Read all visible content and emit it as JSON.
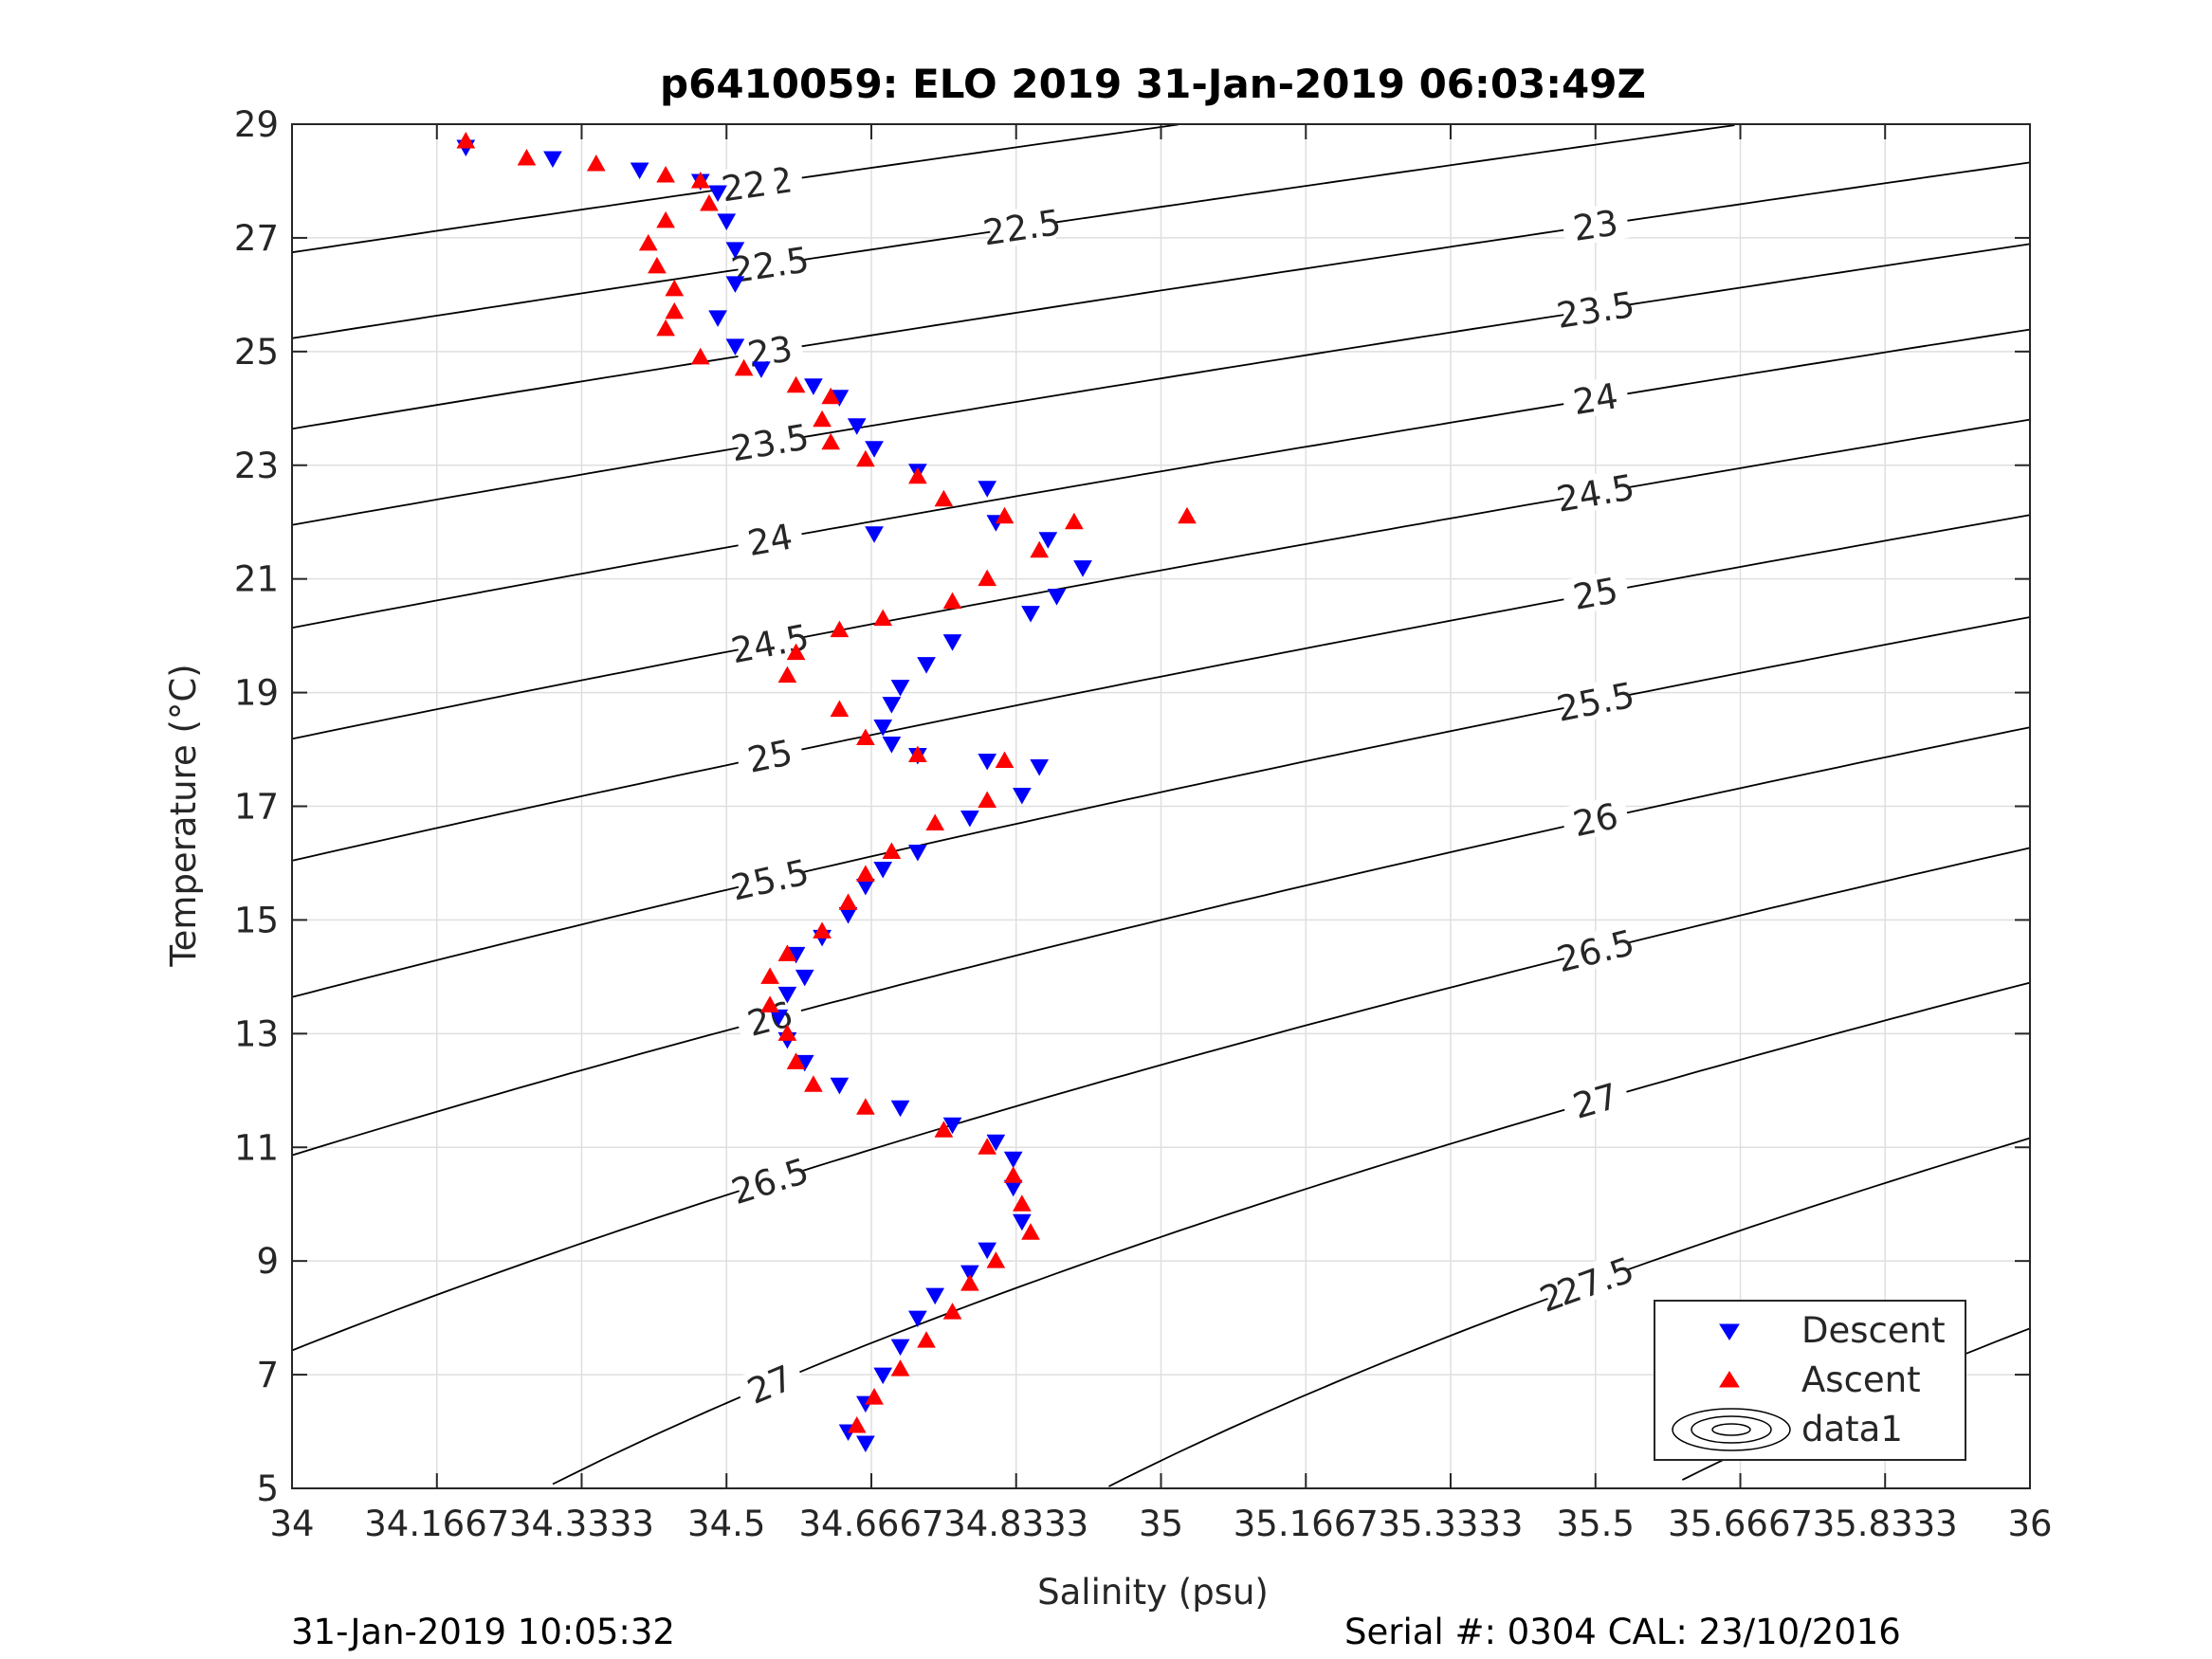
{
  "chart_data": {
    "type": "scatter",
    "title": "p6410059: ELO 2019 31-Jan-2019 06:03:49Z",
    "xlabel": "Salinity (psu)",
    "ylabel": "Temperature (°C)",
    "xlim": [
      34,
      36
    ],
    "ylim": [
      5,
      29
    ],
    "x_ticks": [
      "34",
      "34.1667",
      "34.3333",
      "34.5",
      "34.6667",
      "34.8333",
      "35",
      "35.1667",
      "35.3333",
      "35.5",
      "35.6667",
      "35.8333",
      "36"
    ],
    "y_ticks": [
      "5",
      "7",
      "9",
      "11",
      "13",
      "15",
      "17",
      "19",
      "21",
      "23",
      "25",
      "27",
      "29"
    ],
    "grid": true,
    "legend_position": "bottom-right",
    "legend": [
      "Descent",
      "Ascent",
      "data1"
    ],
    "contour_levels": [
      "22",
      "22.5",
      "23",
      "23.5",
      "24",
      "24.5",
      "25",
      "25.5",
      "26",
      "26.5",
      "27",
      "27.5",
      "28"
    ],
    "series": [
      {
        "name": "Descent",
        "marker": "triangle-down",
        "color": "#0000ff",
        "points": [
          [
            34.2,
            28.6
          ],
          [
            34.3,
            28.4
          ],
          [
            34.4,
            28.2
          ],
          [
            34.47,
            28.0
          ],
          [
            34.49,
            27.8
          ],
          [
            34.5,
            27.3
          ],
          [
            34.51,
            26.8
          ],
          [
            34.51,
            26.2
          ],
          [
            34.49,
            25.6
          ],
          [
            34.51,
            25.1
          ],
          [
            34.54,
            24.7
          ],
          [
            34.6,
            24.4
          ],
          [
            34.63,
            24.2
          ],
          [
            34.65,
            23.7
          ],
          [
            34.67,
            23.3
          ],
          [
            34.72,
            22.9
          ],
          [
            34.8,
            22.6
          ],
          [
            34.67,
            21.8
          ],
          [
            34.81,
            22.0
          ],
          [
            34.87,
            21.7
          ],
          [
            34.91,
            21.2
          ],
          [
            34.88,
            20.7
          ],
          [
            34.85,
            20.4
          ],
          [
            34.76,
            19.9
          ],
          [
            34.73,
            19.5
          ],
          [
            34.7,
            19.1
          ],
          [
            34.69,
            18.8
          ],
          [
            34.68,
            18.4
          ],
          [
            34.69,
            18.1
          ],
          [
            34.72,
            17.9
          ],
          [
            34.8,
            17.8
          ],
          [
            34.86,
            17.7
          ],
          [
            34.84,
            17.2
          ],
          [
            34.78,
            16.8
          ],
          [
            34.72,
            16.2
          ],
          [
            34.68,
            15.9
          ],
          [
            34.66,
            15.6
          ],
          [
            34.64,
            15.1
          ],
          [
            34.61,
            14.7
          ],
          [
            34.58,
            14.4
          ],
          [
            34.59,
            14.0
          ],
          [
            34.57,
            13.7
          ],
          [
            34.56,
            13.3
          ],
          [
            34.57,
            12.9
          ],
          [
            34.59,
            12.5
          ],
          [
            34.63,
            12.1
          ],
          [
            34.7,
            11.7
          ],
          [
            34.76,
            11.4
          ],
          [
            34.81,
            11.1
          ],
          [
            34.83,
            10.8
          ],
          [
            34.83,
            10.3
          ],
          [
            34.84,
            9.7
          ],
          [
            34.8,
            9.2
          ],
          [
            34.78,
            8.8
          ],
          [
            34.74,
            8.4
          ],
          [
            34.72,
            8.0
          ],
          [
            34.7,
            7.5
          ],
          [
            34.68,
            7.0
          ],
          [
            34.66,
            6.5
          ],
          [
            34.64,
            6.0
          ],
          [
            34.66,
            5.8
          ]
        ]
      },
      {
        "name": "Ascent",
        "marker": "triangle-up",
        "color": "#ff0000",
        "points": [
          [
            34.2,
            28.7
          ],
          [
            34.27,
            28.4
          ],
          [
            34.35,
            28.3
          ],
          [
            34.43,
            28.1
          ],
          [
            34.47,
            28.0
          ],
          [
            34.48,
            27.6
          ],
          [
            34.43,
            27.3
          ],
          [
            34.41,
            26.9
          ],
          [
            34.42,
            26.5
          ],
          [
            34.44,
            26.1
          ],
          [
            34.44,
            25.7
          ],
          [
            34.43,
            25.4
          ],
          [
            34.47,
            24.9
          ],
          [
            34.52,
            24.7
          ],
          [
            34.58,
            24.4
          ],
          [
            34.62,
            24.2
          ],
          [
            34.61,
            23.8
          ],
          [
            34.62,
            23.4
          ],
          [
            34.66,
            23.1
          ],
          [
            34.72,
            22.8
          ],
          [
            34.75,
            22.4
          ],
          [
            34.82,
            22.1
          ],
          [
            34.9,
            22.0
          ],
          [
            35.03,
            22.1
          ],
          [
            34.86,
            21.5
          ],
          [
            34.8,
            21.0
          ],
          [
            34.76,
            20.6
          ],
          [
            34.68,
            20.3
          ],
          [
            34.63,
            20.1
          ],
          [
            34.58,
            19.7
          ],
          [
            34.57,
            19.3
          ],
          [
            34.63,
            18.7
          ],
          [
            34.66,
            18.2
          ],
          [
            34.72,
            17.9
          ],
          [
            34.82,
            17.8
          ],
          [
            34.8,
            17.1
          ],
          [
            34.74,
            16.7
          ],
          [
            34.69,
            16.2
          ],
          [
            34.66,
            15.8
          ],
          [
            34.64,
            15.3
          ],
          [
            34.61,
            14.8
          ],
          [
            34.57,
            14.4
          ],
          [
            34.55,
            14.0
          ],
          [
            34.55,
            13.5
          ],
          [
            34.57,
            13.0
          ],
          [
            34.58,
            12.5
          ],
          [
            34.6,
            12.1
          ],
          [
            34.66,
            11.7
          ],
          [
            34.75,
            11.3
          ],
          [
            34.8,
            11.0
          ],
          [
            34.83,
            10.5
          ],
          [
            34.84,
            10.0
          ],
          [
            34.85,
            9.5
          ],
          [
            34.81,
            9.0
          ],
          [
            34.78,
            8.6
          ],
          [
            34.76,
            8.1
          ],
          [
            34.73,
            7.6
          ],
          [
            34.7,
            7.1
          ],
          [
            34.67,
            6.6
          ],
          [
            34.65,
            6.1
          ]
        ]
      }
    ]
  },
  "footer": {
    "left": "31-Jan-2019 10:05:32",
    "right": "Serial #: 0304  CAL: 23/10/2016"
  }
}
